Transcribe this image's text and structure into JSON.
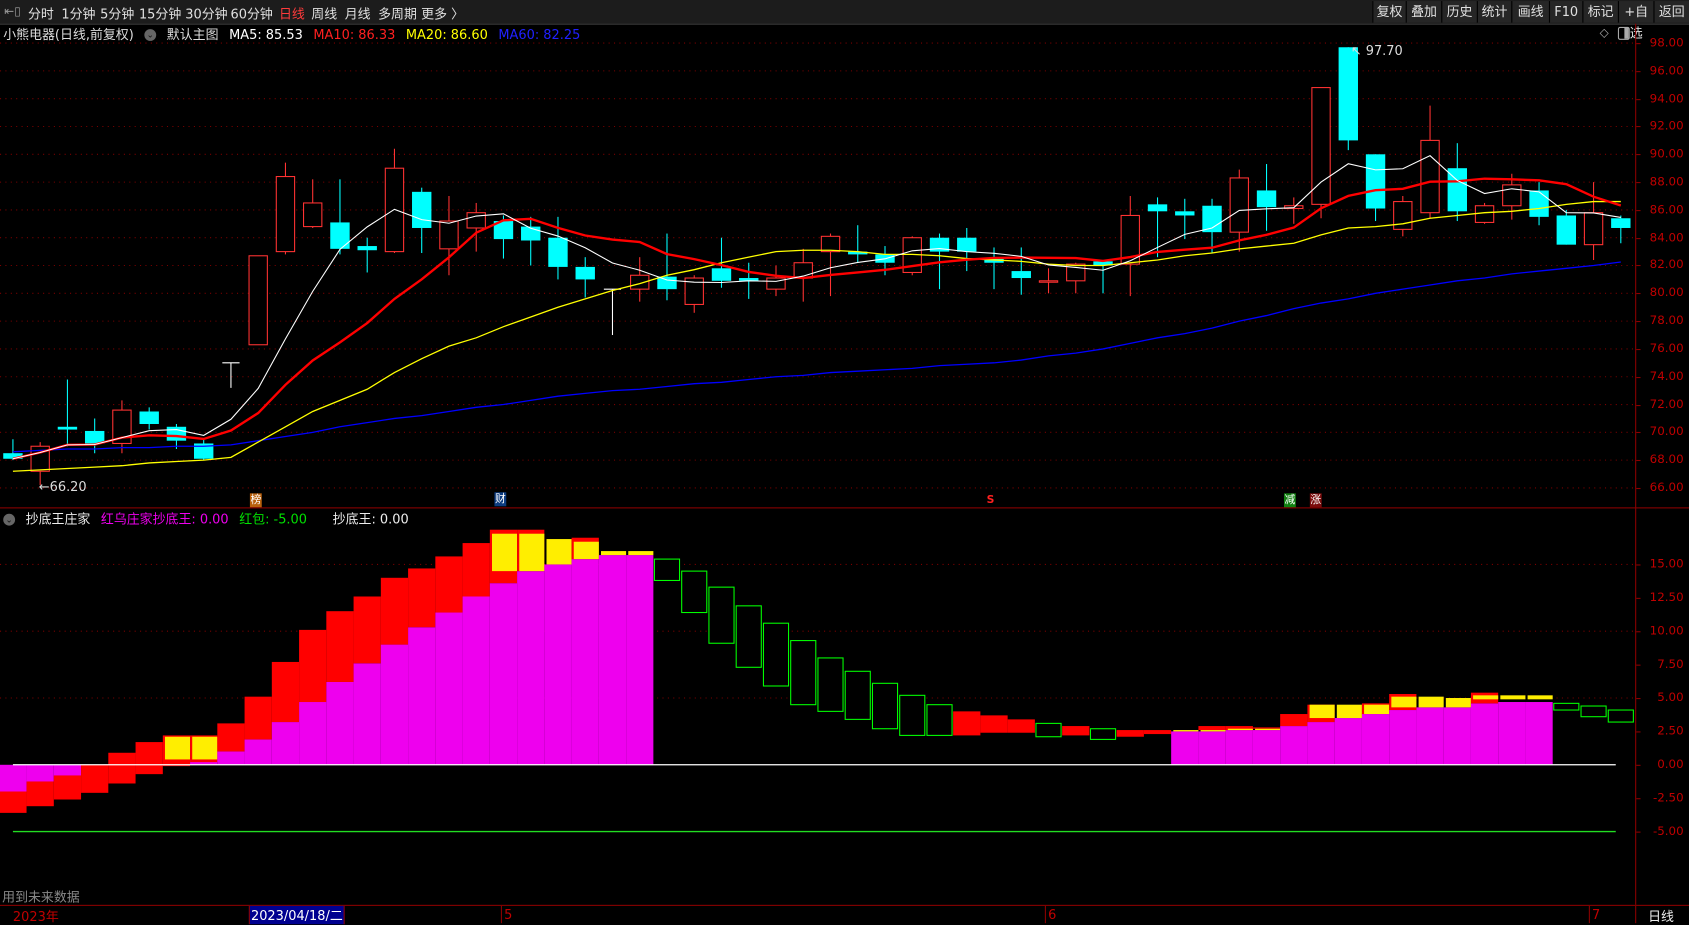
{
  "toolbar": {
    "tabs": [
      "分时",
      "1分钟",
      "5分钟",
      "15分钟",
      "30分钟",
      "60分钟",
      "日线",
      "周线",
      "月线",
      "多周期",
      "更多 〉"
    ],
    "active_tab": "日线",
    "right_buttons": [
      "复权",
      "叠加",
      "历史",
      "统计",
      "画线",
      "F10",
      "标记",
      "+自选",
      "返回"
    ]
  },
  "main": {
    "title": "小熊电器(日线,前复权)",
    "template": "默认主图",
    "ma5": "MA5: 85.53",
    "ma10": "MA10: 86.33",
    "ma20": "MA20: 86.60",
    "ma60": "MA60: 82.25",
    "high_label": "97.70",
    "low_label": "66.20",
    "markers": [
      "榜",
      "财",
      "S",
      "减",
      "涨"
    ]
  },
  "colors": {
    "up": "#ff3232",
    "down": "#00ffff",
    "ma5": "#ffffff",
    "ma10": "#ff0000",
    "ma20": "#ffff00",
    "ma60": "#0000ff",
    "magenta": "#ee00ee",
    "red": "#ff0000",
    "yellow": "#ffee00",
    "green": "#00ff00"
  },
  "price_axis": {
    "ticks": [
      "98.00",
      "96.00",
      "94.00",
      "92.00",
      "90.00",
      "88.00",
      "86.00",
      "84.00",
      "82.00",
      "80.00",
      "78.00",
      "76.00",
      "74.00",
      "72.00",
      "70.00",
      "68.00",
      "66.00"
    ]
  },
  "indicator": {
    "name": "抄底王庄家",
    "line1": "红乌庄家抄底王: 0.00",
    "line2": "红包: -5.00",
    "line3": "抄底王: 0.00",
    "ticks": [
      "15.00",
      "12.50",
      "10.00",
      "7.50",
      "5.00",
      "2.50",
      "0.00",
      "-2.50",
      "-5.00"
    ],
    "note": "用到未来数据"
  },
  "datebar": {
    "year": "2023年",
    "cursor_date": "2023/04/18/二",
    "months": [
      "5",
      "6",
      "7"
    ],
    "period": "日线"
  },
  "chart_data": {
    "type": "candlestick",
    "ohlc_columns": [
      "open",
      "high",
      "low",
      "close"
    ],
    "ylim": [
      66,
      98
    ],
    "candles": [
      [
        68.5,
        69.5,
        68.0,
        68.1
      ],
      [
        67.2,
        69.3,
        66.2,
        69.0
      ],
      [
        70.4,
        73.8,
        69.0,
        70.2
      ],
      [
        70.1,
        71.0,
        68.5,
        69.2
      ],
      [
        69.2,
        72.3,
        68.5,
        71.6
      ],
      [
        71.5,
        71.8,
        70.2,
        70.6
      ],
      [
        70.4,
        70.6,
        68.8,
        69.4
      ],
      [
        69.2,
        69.5,
        68.0,
        68.1
      ],
      [
        75.0,
        75.0,
        73.2,
        75.0
      ],
      [
        76.3,
        82.7,
        76.3,
        82.7
      ],
      [
        83.0,
        89.4,
        82.8,
        88.4
      ],
      [
        84.8,
        88.2,
        84.7,
        86.5
      ],
      [
        85.1,
        88.2,
        82.8,
        83.2
      ],
      [
        83.4,
        84.0,
        81.5,
        83.1
      ],
      [
        83.0,
        90.4,
        82.9,
        89.0
      ],
      [
        87.3,
        87.6,
        82.9,
        84.7
      ],
      [
        83.2,
        87.0,
        81.3,
        85.2
      ],
      [
        84.7,
        86.5,
        83.0,
        85.8
      ],
      [
        85.2,
        85.6,
        82.5,
        83.9
      ],
      [
        84.8,
        85.5,
        82.0,
        83.8
      ],
      [
        84.0,
        85.5,
        81.0,
        81.9
      ],
      [
        81.9,
        82.6,
        79.7,
        81.0
      ],
      [
        80.3,
        80.3,
        77.0,
        80.3
      ],
      [
        80.3,
        82.6,
        79.4,
        81.3
      ],
      [
        81.2,
        84.3,
        79.5,
        80.3
      ],
      [
        79.2,
        81.3,
        78.6,
        81.1
      ],
      [
        81.8,
        84.0,
        80.4,
        80.9
      ],
      [
        81.1,
        82.2,
        79.6,
        80.9
      ],
      [
        80.3,
        82.0,
        79.8,
        81.1
      ],
      [
        81.1,
        83.2,
        79.4,
        82.2
      ],
      [
        83.0,
        84.3,
        79.8,
        84.1
      ],
      [
        83.0,
        84.9,
        82.2,
        82.8
      ],
      [
        82.8,
        83.4,
        81.3,
        82.2
      ],
      [
        81.5,
        84.1,
        81.3,
        84.0
      ],
      [
        84.0,
        84.3,
        80.3,
        83.0
      ],
      [
        84.0,
        84.7,
        81.6,
        83.0
      ],
      [
        82.5,
        83.3,
        80.3,
        82.2
      ],
      [
        81.6,
        83.3,
        79.9,
        81.1
      ],
      [
        80.8,
        81.8,
        80.0,
        80.9
      ],
      [
        80.9,
        82.2,
        80.0,
        82.1
      ],
      [
        82.3,
        82.4,
        80.0,
        82.0
      ],
      [
        82.1,
        87.0,
        79.8,
        85.6
      ],
      [
        86.4,
        86.9,
        82.6,
        85.9
      ],
      [
        85.9,
        86.8,
        83.9,
        85.6
      ],
      [
        86.3,
        86.8,
        82.9,
        84.4
      ],
      [
        84.4,
        88.9,
        83.0,
        88.3
      ],
      [
        87.4,
        89.3,
        84.5,
        86.2
      ],
      [
        86.1,
        86.9,
        85.0,
        86.3
      ],
      [
        86.4,
        94.8,
        85.4,
        94.8
      ],
      [
        97.7,
        97.7,
        90.3,
        91.0
      ],
      [
        90.0,
        90.0,
        85.2,
        86.1
      ],
      [
        84.6,
        87.0,
        84.1,
        86.6
      ],
      [
        85.8,
        93.5,
        85.4,
        91.0
      ],
      [
        89.0,
        90.8,
        85.2,
        85.9
      ],
      [
        85.1,
        86.5,
        85.0,
        86.3
      ],
      [
        86.3,
        88.6,
        85.3,
        87.8
      ],
      [
        87.4,
        88.0,
        84.9,
        85.5
      ],
      [
        85.6,
        86.0,
        83.5,
        83.5
      ],
      [
        83.5,
        88.0,
        82.4,
        85.8
      ],
      [
        85.4,
        85.6,
        83.6,
        84.7
      ]
    ],
    "ma20": [
      67.2,
      67.3,
      67.4,
      67.5,
      67.6,
      67.8,
      67.9,
      68.0,
      68.2,
      69.3,
      70.4,
      71.5,
      72.3,
      73.1,
      74.3,
      75.3,
      76.2,
      76.8,
      77.6,
      78.3,
      79.0,
      79.6,
      80.2,
      80.7,
      81.3,
      81.7,
      82.2,
      82.6,
      83.0,
      83.1,
      83.1,
      83.0,
      82.8,
      82.8,
      82.7,
      82.5,
      82.4,
      82.3,
      82.1,
      82.0,
      82.0,
      82.2,
      82.4,
      82.7,
      82.9,
      83.2,
      83.4,
      83.6,
      84.2,
      84.7,
      84.8,
      85.0,
      85.4,
      85.6,
      85.8,
      85.9,
      86.1,
      86.4,
      86.6,
      86.6
    ],
    "ma60": [
      68.6,
      68.7,
      68.8,
      68.8,
      68.9,
      68.9,
      69.0,
      69.0,
      69.1,
      69.4,
      69.7,
      70.0,
      70.4,
      70.7,
      71.0,
      71.2,
      71.5,
      71.8,
      72.0,
      72.3,
      72.6,
      72.8,
      73.0,
      73.1,
      73.3,
      73.5,
      73.6,
      73.8,
      74.0,
      74.1,
      74.3,
      74.4,
      74.5,
      74.6,
      74.8,
      74.9,
      75.0,
      75.2,
      75.5,
      75.7,
      76.0,
      76.4,
      76.8,
      77.1,
      77.5,
      78.0,
      78.4,
      78.9,
      79.3,
      79.6,
      80.0,
      80.3,
      80.6,
      80.9,
      81.1,
      81.4,
      81.6,
      81.8,
      82.0,
      82.25
    ],
    "indicator_ylim": [
      -7.5,
      18
    ],
    "indicator_reference_line": -5,
    "indicator_columns_note_keys": [
      "magenta_top",
      "red",
      "yellow",
      "green"
    ],
    "indicator_columns": [
      [
        -2.0,
        [
          -3.6,
          -2.0
        ],
        null,
        null
      ],
      [
        -1.25,
        [
          -3.1,
          -1.25
        ],
        null,
        null
      ],
      [
        -0.8,
        [
          -2.6,
          -0.8
        ],
        null,
        null
      ],
      [
        0,
        [
          -2.1,
          0
        ],
        null,
        null
      ],
      [
        0,
        [
          -1.4,
          0.9
        ],
        null,
        null
      ],
      [
        0,
        [
          -0.7,
          1.7
        ],
        null,
        null
      ],
      [
        0,
        [
          -0.1,
          2.2
        ],
        [
          0.4,
          2.1
        ],
        null
      ],
      [
        0.4,
        [
          0.2,
          2.2
        ],
        [
          0.4,
          2.1
        ],
        null
      ],
      [
        1.0,
        [
          1.0,
          3.1
        ],
        null,
        null
      ],
      [
        1.9,
        [
          1.9,
          5.1
        ],
        null,
        null
      ],
      [
        3.2,
        [
          3.2,
          7.7
        ],
        null,
        null
      ],
      [
        4.7,
        [
          4.7,
          10.1
        ],
        null,
        null
      ],
      [
        6.2,
        [
          6.2,
          11.5
        ],
        null,
        null
      ],
      [
        7.6,
        [
          7.6,
          12.6
        ],
        null,
        null
      ],
      [
        9.0,
        [
          9.0,
          14.0
        ],
        null,
        null
      ],
      [
        10.3,
        [
          10.3,
          14.7
        ],
        null,
        null
      ],
      [
        11.4,
        [
          11.4,
          15.6
        ],
        null,
        null
      ],
      [
        12.6,
        [
          12.6,
          16.6
        ],
        null,
        null
      ],
      [
        13.6,
        [
          13.6,
          17.6
        ],
        [
          14.5,
          17.3
        ],
        null
      ],
      [
        14.5,
        [
          14.5,
          17.6
        ],
        [
          14.5,
          17.3
        ],
        null
      ],
      [
        15.0,
        null,
        [
          15.0,
          16.9
        ],
        null
      ],
      [
        15.4,
        [
          15.4,
          17.0
        ],
        [
          15.4,
          16.7
        ],
        null
      ],
      [
        15.7,
        null,
        [
          15.7,
          16.0
        ],
        null
      ],
      [
        15.7,
        null,
        [
          15.7,
          16.0
        ],
        null
      ],
      [
        0,
        null,
        null,
        [
          13.8,
          15.4
        ]
      ],
      [
        0,
        null,
        null,
        [
          11.4,
          14.5
        ]
      ],
      [
        0,
        null,
        null,
        [
          9.1,
          13.3
        ]
      ],
      [
        0,
        null,
        null,
        [
          7.3,
          11.9
        ]
      ],
      [
        0,
        null,
        null,
        [
          5.9,
          10.6
        ]
      ],
      [
        0,
        null,
        null,
        [
          4.5,
          9.3
        ]
      ],
      [
        0,
        null,
        null,
        [
          4.0,
          8.0
        ]
      ],
      [
        0,
        null,
        null,
        [
          3.4,
          7.0
        ]
      ],
      [
        0,
        null,
        null,
        [
          2.7,
          6.1
        ]
      ],
      [
        0,
        null,
        null,
        [
          2.2,
          5.2
        ]
      ],
      [
        0,
        null,
        null,
        [
          2.2,
          4.5
        ]
      ],
      [
        0,
        [
          2.2,
          4.0
        ],
        null,
        null
      ],
      [
        0,
        [
          2.4,
          3.7
        ],
        null,
        null
      ],
      [
        0,
        [
          2.4,
          3.4
        ],
        null,
        null
      ],
      [
        0,
        null,
        null,
        [
          2.1,
          3.1
        ]
      ],
      [
        0,
        [
          2.2,
          2.9
        ],
        null,
        null
      ],
      [
        0,
        null,
        null,
        [
          1.9,
          2.7
        ]
      ],
      [
        0,
        [
          2.1,
          2.6
        ],
        null,
        null
      ],
      [
        0,
        [
          2.3,
          2.6
        ],
        null,
        null
      ],
      [
        2.5,
        null,
        [
          2.5,
          2.6
        ],
        null
      ],
      [
        2.5,
        [
          2.6,
          2.9
        ],
        [
          2.5,
          2.6
        ],
        null
      ],
      [
        2.6,
        [
          2.6,
          2.9
        ],
        [
          2.6,
          2.7
        ],
        null
      ],
      [
        2.6,
        [
          2.7,
          2.8
        ],
        [
          2.6,
          2.7
        ],
        null
      ],
      [
        2.9,
        [
          2.9,
          3.8
        ],
        null,
        null
      ],
      [
        3.2,
        [
          3.2,
          4.5
        ],
        [
          3.5,
          4.5
        ],
        null
      ],
      [
        3.5,
        null,
        [
          3.5,
          4.5
        ],
        null
      ],
      [
        3.8,
        [
          3.8,
          4.6
        ],
        [
          3.8,
          4.5
        ],
        null
      ],
      [
        4.1,
        [
          4.1,
          5.3
        ],
        [
          4.3,
          5.1
        ],
        null
      ],
      [
        4.3,
        null,
        [
          4.3,
          5.1
        ],
        null
      ],
      [
        4.3,
        null,
        [
          4.3,
          5.0
        ],
        null
      ],
      [
        4.6,
        [
          4.6,
          5.4
        ],
        [
          4.9,
          5.2
        ],
        null
      ],
      [
        4.7,
        null,
        [
          4.9,
          5.2
        ],
        null
      ],
      [
        4.7,
        null,
        [
          4.9,
          5.2
        ],
        null
      ],
      [
        0,
        null,
        null,
        [
          4.1,
          4.6
        ]
      ],
      [
        0,
        null,
        null,
        [
          3.6,
          4.4
        ]
      ],
      [
        0,
        null,
        null,
        [
          3.2,
          4.1
        ]
      ]
    ]
  }
}
